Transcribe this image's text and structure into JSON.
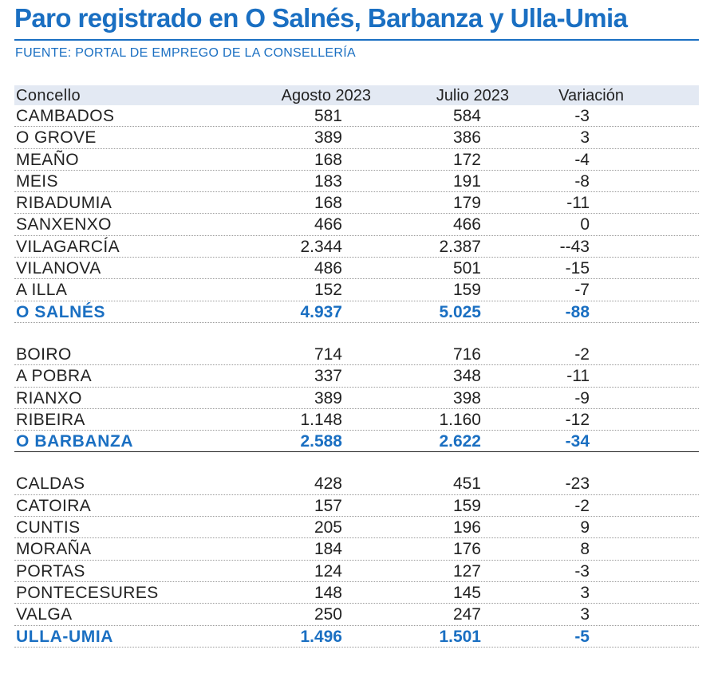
{
  "title": "Paro registrado en O Salnés, Barbanza y Ulla-Umia",
  "source": "FUENTE: PORTAL DE EMPREGO DE LA CONSELLERÍA",
  "colors": {
    "accent": "#1a6fc2",
    "header_bg": "#e3e9f3"
  },
  "table": {
    "headers": [
      "Concello",
      "Agosto 2023",
      "Julio 2023",
      "Variación"
    ],
    "groups": [
      {
        "rows": [
          [
            "CAMBADOS",
            "581",
            "584",
            "-3"
          ],
          [
            "O GROVE",
            "389",
            "386",
            "3"
          ],
          [
            "MEAÑO",
            "168",
            "172",
            "-4"
          ],
          [
            "MEIS",
            "183",
            "191",
            "-8"
          ],
          [
            "RIBADUMIA",
            "168",
            "179",
            "-11"
          ],
          [
            "SANXENXO",
            "466",
            "466",
            "0"
          ],
          [
            "VILAGARCÍA",
            "2.344",
            "2.387",
            "--43"
          ],
          [
            "VILANOVA",
            "486",
            "501",
            "-15"
          ],
          [
            "A ILLA",
            "152",
            "159",
            "-7"
          ]
        ],
        "total": [
          "O SALNÉS",
          "4.937",
          "5.025",
          "-88"
        ]
      },
      {
        "rows": [
          [
            "BOIRO",
            "714",
            "716",
            "-2"
          ],
          [
            "A POBRA",
            "337",
            "348",
            "-11"
          ],
          [
            "RIANXO",
            "389",
            "398",
            "-9"
          ],
          [
            "RIBEIRA",
            "1.148",
            "1.160",
            "-12"
          ]
        ],
        "total": [
          "O BARBANZA",
          "2.588",
          "2.622",
          "-34"
        ]
      },
      {
        "rows": [
          [
            "CALDAS",
            "428",
            "451",
            "-23"
          ],
          [
            "CATOIRA",
            "157",
            "159",
            "-2"
          ],
          [
            "CUNTIS",
            "205",
            "196",
            "9"
          ],
          [
            "MORAÑA",
            "184",
            "176",
            "8"
          ],
          [
            "PORTAS",
            "124",
            "127",
            "-3"
          ],
          [
            "PONTECESURES",
            "148",
            "145",
            "3"
          ],
          [
            "VALGA",
            "250",
            "247",
            "3"
          ]
        ],
        "total": [
          "ULLA-UMIA",
          "1.496",
          "1.501",
          "-5"
        ]
      }
    ]
  }
}
